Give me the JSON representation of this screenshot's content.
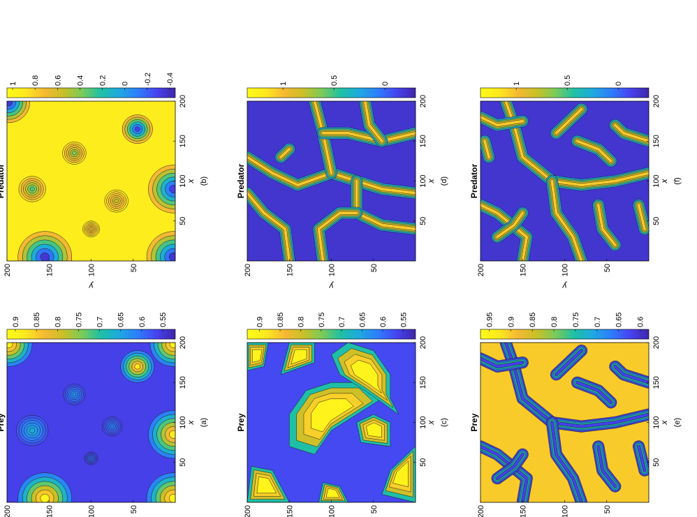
{
  "figure": {
    "orientation": "rotated 90° counter-clockwise"
  },
  "chart_data": [
    {
      "panel": "(a)",
      "type": "heatmap",
      "title": "Prey",
      "xlabel": "x",
      "ylabel": "y",
      "xlim": [
        0,
        200
      ],
      "ylim": [
        0,
        200
      ],
      "x_ticks": [
        "50",
        "100",
        "150",
        "200"
      ],
      "y_ticks": [
        "50",
        "100",
        "150",
        "200"
      ],
      "colorbar_ticks": [
        "0.9",
        "0.85",
        "0.8",
        "0.75",
        "0.7",
        "0.65",
        "0.6",
        "0.55"
      ],
      "colorbar_range": [
        0.52,
        0.92
      ],
      "background_level": 0.56,
      "spots": [
        {
          "x": 90,
          "y": 170,
          "r": 19,
          "level": 0.66
        },
        {
          "x": 135,
          "y": 120,
          "r": 13,
          "level": 0.63
        },
        {
          "x": 95,
          "y": 75,
          "r": 12,
          "level": 0.61
        },
        {
          "x": 55,
          "y": 100,
          "r": 8,
          "level": 0.6
        },
        {
          "x": 5,
          "y": 155,
          "r": 32,
          "level": 0.9
        },
        {
          "x": 5,
          "y": 2,
          "r": 32,
          "level": 0.9
        },
        {
          "x": 85,
          "y": 2,
          "r": 30,
          "level": 0.88
        },
        {
          "x": 170,
          "y": 45,
          "r": 20,
          "level": 0.88
        },
        {
          "x": 198,
          "y": 2,
          "r": 28,
          "level": 0.9
        },
        {
          "x": 198,
          "y": 198,
          "r": 28,
          "level": 0.9
        }
      ]
    },
    {
      "panel": "(b)",
      "type": "heatmap",
      "title": "Predator",
      "xlabel": "x",
      "ylabel": "y",
      "xlim": [
        0,
        200
      ],
      "ylim": [
        0,
        200
      ],
      "x_ticks": [
        "50",
        "100",
        "150",
        "200"
      ],
      "y_ticks": [
        "50",
        "100",
        "150",
        "200"
      ],
      "colorbar_ticks": [
        "1",
        "0.8",
        "0.6",
        "0.4",
        "0.2",
        "0",
        "-0.2",
        "-0.4"
      ],
      "colorbar_range": [
        -0.45,
        1.05
      ],
      "background_level": 0.92,
      "spots": [
        {
          "x": 90,
          "y": 170,
          "r": 16,
          "level": 0.3
        },
        {
          "x": 135,
          "y": 120,
          "r": 14,
          "level": 0.4
        },
        {
          "x": 75,
          "y": 70,
          "r": 14,
          "level": 0.55
        },
        {
          "x": 40,
          "y": 100,
          "r": 10,
          "level": 0.6
        },
        {
          "x": 5,
          "y": 155,
          "r": 32,
          "level": -0.35
        },
        {
          "x": 5,
          "y": 2,
          "r": 32,
          "level": -0.35
        },
        {
          "x": 90,
          "y": 2,
          "r": 30,
          "level": -0.3
        },
        {
          "x": 165,
          "y": 45,
          "r": 18,
          "level": -0.3
        },
        {
          "x": 198,
          "y": 198,
          "r": 25,
          "level": -0.35
        }
      ]
    },
    {
      "panel": "(c)",
      "type": "heatmap",
      "title": "Prey",
      "xlabel": "x",
      "ylabel": "y",
      "xlim": [
        0,
        200
      ],
      "ylim": [
        0,
        200
      ],
      "x_ticks": [
        "50",
        "100",
        "150",
        "200"
      ],
      "y_ticks": [
        "50",
        "100",
        "150",
        "200"
      ],
      "colorbar_ticks": [
        "0.9",
        "0.85",
        "0.8",
        "0.75",
        "0.7",
        "0.65",
        "0.6",
        "0.55"
      ],
      "colorbar_range": [
        0.52,
        0.93
      ]
    },
    {
      "panel": "(d)",
      "type": "heatmap",
      "title": "Predator",
      "xlabel": "x",
      "ylabel": "y",
      "xlim": [
        0,
        200
      ],
      "ylim": [
        0,
        200
      ],
      "x_ticks": [
        "50",
        "100",
        "150",
        "200"
      ],
      "y_ticks": [
        "50",
        "100",
        "150",
        "200"
      ],
      "colorbar_ticks": [
        "1",
        "0.5",
        "0"
      ],
      "colorbar_range": [
        -0.3,
        1.35
      ]
    },
    {
      "panel": "(e)",
      "type": "heatmap",
      "title": "Prey",
      "xlabel": "x",
      "ylabel": "y",
      "xlim": [
        0,
        200
      ],
      "ylim": [
        0,
        200
      ],
      "x_ticks": [
        "50",
        "100",
        "150",
        "200"
      ],
      "y_ticks": [
        "50",
        "100",
        "150",
        "200"
      ],
      "colorbar_ticks": [
        "0.95",
        "0.9",
        "0.85",
        "0.8",
        "0.75",
        "0.7",
        "0.65",
        "0.6"
      ],
      "colorbar_range": [
        0.58,
        0.97
      ]
    },
    {
      "panel": "(f)",
      "type": "heatmap",
      "title": "Predator",
      "xlabel": "x",
      "ylabel": "y",
      "xlim": [
        0,
        200
      ],
      "ylim": [
        0,
        200
      ],
      "x_ticks": [
        "50",
        "100",
        "150",
        "200"
      ],
      "y_ticks": [
        "50",
        "100",
        "150",
        "200"
      ],
      "colorbar_ticks": [
        "1",
        "0.5",
        "0"
      ],
      "colorbar_range": [
        -0.3,
        1.35
      ]
    }
  ],
  "colors": {
    "parula": [
      "#3e26a8",
      "#4743f0",
      "#2d7dfb",
      "#1ea9e0",
      "#1fc0a4",
      "#7bcb59",
      "#c9c027",
      "#f5b933",
      "#fde91f",
      "#fffb16"
    ],
    "contour": "#1a1a1a"
  }
}
